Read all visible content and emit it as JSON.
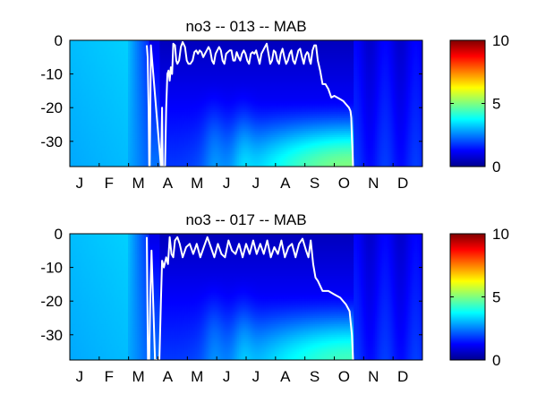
{
  "figure": {
    "background": "#ffffff"
  },
  "chart_data": [
    {
      "type": "heatmap",
      "title": "no3 -- 013 -- MAB",
      "x_tick_labels": [
        "J",
        "F",
        "M",
        "A",
        "M",
        "J",
        "J",
        "A",
        "S",
        "O",
        "N",
        "D"
      ],
      "y_ticks": [
        0,
        -10,
        -20,
        -30
      ],
      "ylim": [
        -37.5,
        0
      ],
      "xlim": [
        0,
        12
      ],
      "colorbar": {
        "ticks": [
          0,
          5,
          10
        ],
        "range": [
          0,
          10
        ],
        "colormap": "jet"
      },
      "mixed_layer_depth_line": {
        "color": "#ffffff",
        "x": [
          2.62,
          2.65,
          2.68,
          2.7,
          2.72,
          2.74,
          2.76,
          3.1,
          3.12,
          3.14,
          3.16,
          3.2,
          3.24,
          3.28,
          3.32,
          3.36,
          3.4,
          3.44,
          3.48,
          3.5,
          3.52,
          3.58,
          3.62,
          3.66,
          3.72,
          3.78,
          3.84,
          3.92,
          3.98,
          4.04,
          4.1,
          4.18,
          4.24,
          4.3,
          4.36,
          4.42,
          4.48,
          4.54,
          4.6,
          4.66,
          4.72,
          4.78,
          4.84,
          4.9,
          4.96,
          5.02,
          5.08,
          5.14,
          5.2,
          5.26,
          5.32,
          5.38,
          5.44,
          5.5,
          5.56,
          5.62,
          5.68,
          5.74,
          5.8,
          5.86,
          5.92,
          5.98,
          6.04,
          6.1,
          6.16,
          6.22,
          6.28,
          6.34,
          6.4,
          6.46,
          6.52,
          6.58,
          6.64,
          6.7,
          6.76,
          6.82,
          6.88,
          6.94,
          7,
          7.06,
          7.12,
          7.18,
          7.24,
          7.3,
          7.36,
          7.42,
          7.48,
          7.54,
          7.6,
          7.66,
          7.72,
          7.78,
          7.84,
          7.9,
          7.96,
          8.02,
          8.08,
          8.12,
          8.16,
          8.2,
          8.26,
          8.32,
          8.38,
          8.44,
          8.52,
          8.6,
          8.7,
          8.8,
          8.9,
          9,
          9.1,
          9.2,
          9.3,
          9.4,
          9.5,
          9.55,
          9.58,
          9.6,
          9.62,
          9.64
        ],
        "y": [
          -1.5,
          -5,
          -20,
          -37.5,
          -37.5,
          -20,
          -1.5,
          -37.5,
          -30,
          -20,
          -37.5,
          -37.5,
          -37.5,
          -20,
          -10,
          -9,
          -12,
          -8,
          -10,
          -6,
          -1,
          -1.5,
          -6,
          -7,
          -6,
          -2,
          -0.5,
          -2,
          -6,
          -7,
          -7,
          -6,
          -3.5,
          -3,
          -4,
          -3,
          -3.5,
          -5,
          -4,
          -3,
          -2,
          -3,
          -6,
          -7,
          -4,
          -3,
          -2,
          -3,
          -6,
          -7,
          -4,
          -3.5,
          -3,
          -3,
          -6,
          -6,
          -3.5,
          -5,
          -6,
          -4,
          -3,
          -4,
          -6,
          -7,
          -4,
          -3.5,
          -4,
          -3,
          -5,
          -7,
          -4,
          -3,
          -2,
          -1,
          -4,
          -7,
          -6,
          -3,
          -3.5,
          -6,
          -7,
          -4,
          -2.5,
          -5,
          -7,
          -6,
          -4,
          -3,
          -6,
          -7,
          -5,
          -3,
          -2.5,
          -5,
          -7,
          -4.5,
          -3.5,
          -4,
          -6,
          -7,
          -3,
          -1.5,
          -1.5,
          -6,
          -9,
          -13,
          -13,
          -14.5,
          -17,
          -16.5,
          -17,
          -17.5,
          -18,
          -19,
          -20,
          -21,
          -23,
          -29,
          -33,
          -37.5
        ],
        "style": "detailed"
      }
    },
    {
      "type": "heatmap",
      "title": "no3 -- 017 -- MAB",
      "x_tick_labels": [
        "J",
        "F",
        "M",
        "A",
        "M",
        "J",
        "J",
        "A",
        "S",
        "O",
        "N",
        "D"
      ],
      "y_ticks": [
        0,
        -10,
        -20,
        -30
      ],
      "ylim": [
        -37.5,
        0
      ],
      "xlim": [
        0,
        12
      ],
      "colorbar": {
        "ticks": [
          0,
          5,
          10
        ],
        "range": [
          0,
          10
        ],
        "colormap": "jet"
      },
      "mixed_layer_depth_line": {
        "color": "#ffffff",
        "x": [
          2.62,
          2.66,
          2.7,
          2.74,
          2.78,
          2.9,
          3.05,
          3.1,
          3.14,
          3.2,
          3.28,
          3.34,
          3.4,
          3.46,
          3.52,
          3.58,
          3.66,
          3.74,
          3.84,
          3.96,
          4.08,
          4.2,
          4.32,
          4.44,
          4.56,
          4.68,
          4.8,
          4.92,
          5.04,
          5.16,
          5.28,
          5.4,
          5.52,
          5.64,
          5.76,
          5.88,
          6,
          6.12,
          6.24,
          6.36,
          6.48,
          6.6,
          6.72,
          6.84,
          6.96,
          7.08,
          7.2,
          7.32,
          7.44,
          7.56,
          7.68,
          7.8,
          7.92,
          8.04,
          8.12,
          8.2,
          8.28,
          8.36,
          8.44,
          8.6,
          8.8,
          9,
          9.2,
          9.4,
          9.52,
          9.6,
          9.64
        ],
        "y": [
          -1,
          -37.5,
          -37.5,
          -18,
          -5,
          -37.5,
          -37.5,
          -20,
          -8,
          -10,
          -7,
          -9,
          -1,
          -6,
          -7,
          -2,
          -1,
          -3,
          -7,
          -4,
          -3,
          -6,
          -3,
          -7,
          -4,
          -1,
          -4,
          -7,
          -3,
          -6,
          -7,
          -2,
          -5,
          -6,
          -3,
          -7,
          -3,
          -6,
          -2,
          -6,
          -3,
          -6,
          -2,
          -7,
          -4,
          -6,
          -2,
          -7,
          -4,
          -3,
          -7,
          -3,
          -1.5,
          -5,
          -7,
          -2,
          -9,
          -13,
          -14,
          -17,
          -17,
          -18,
          -19,
          -21,
          -23,
          -30,
          -37.5
        ],
        "style": "detailed"
      }
    }
  ]
}
